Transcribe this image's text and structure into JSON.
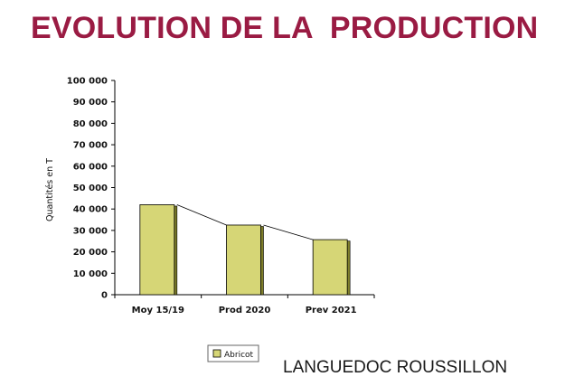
{
  "title": "EVOLUTION DE LA  PRODUCTION",
  "colors": {
    "title": "#9a1b43",
    "bar_fill": "#d6d676",
    "bar_side": "#7f7f2a",
    "axis": "#000000",
    "text": "#111111"
  },
  "region_label": "LANGUEDOC ROUSSILLON",
  "chart_data": {
    "type": "bar",
    "categories": [
      "Moy 15/19",
      "Prod 2020",
      "Prev 2021"
    ],
    "series": [
      {
        "name": "Abricot",
        "values": [
          42000,
          32500,
          25700
        ]
      }
    ],
    "ylabel": "Quantités en T",
    "xlabel": "",
    "ylim": [
      0,
      100000
    ],
    "yticks": [
      "0",
      "10 000",
      "20 000",
      "30 000",
      "40 000",
      "50 000",
      "60 000",
      "70 000",
      "80 000",
      "90 000",
      "100 000"
    ],
    "connector_lines": true,
    "grid": false,
    "legend_position": "bottom-left"
  }
}
